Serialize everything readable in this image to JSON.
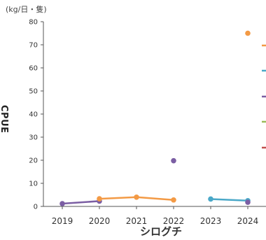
{
  "chart_data": {
    "type": "line",
    "title": "シログチ",
    "ylabel": "CPUE",
    "yunit": "(kg/日・隻)",
    "ylim": [
      0,
      80
    ],
    "yticks": [
      0,
      10,
      20,
      30,
      40,
      50,
      60,
      70,
      80
    ],
    "categories": [
      "2019",
      "2020",
      "2021",
      "2022",
      "2023",
      "2024"
    ],
    "grid": false,
    "legend": "right (cut off)",
    "series": [
      {
        "color": "#7b5ea3",
        "points": [
          [
            2019,
            1.2
          ],
          [
            2020,
            2.3
          ]
        ]
      },
      {
        "color": "#f39a45",
        "points": [
          [
            2020,
            3.3
          ],
          [
            2021,
            4.0
          ],
          [
            2022,
            2.8
          ]
        ]
      },
      {
        "color": "#7b5ea3",
        "points": [
          [
            2022,
            19.8
          ]
        ]
      },
      {
        "color": "#f39a45",
        "points": [
          [
            2024,
            75.0
          ]
        ]
      },
      {
        "color": "#4aa8c8",
        "points": [
          [
            2023,
            3.2
          ],
          [
            2024,
            2.5
          ]
        ]
      },
      {
        "color": "#7b5ea3",
        "points": [
          [
            2024,
            1.8
          ]
        ]
      }
    ],
    "legend_colors": [
      "#f39a45",
      "#4aa8c8",
      "#7b5ea3",
      "#9bbb59",
      "#c0504d"
    ]
  }
}
